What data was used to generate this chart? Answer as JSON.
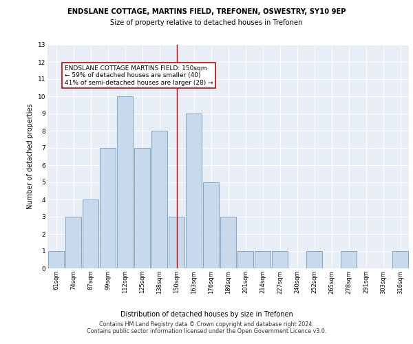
{
  "title1": "ENDSLANE COTTAGE, MARTINS FIELD, TREFONEN, OSWESTRY, SY10 9EP",
  "title2": "Size of property relative to detached houses in Trefonen",
  "xlabel": "Distribution of detached houses by size in Trefonen",
  "ylabel": "Number of detached properties",
  "categories": [
    "61sqm",
    "74sqm",
    "87sqm",
    "99sqm",
    "112sqm",
    "125sqm",
    "138sqm",
    "150sqm",
    "163sqm",
    "176sqm",
    "189sqm",
    "201sqm",
    "214sqm",
    "227sqm",
    "240sqm",
    "252sqm",
    "265sqm",
    "278sqm",
    "291sqm",
    "303sqm",
    "316sqm"
  ],
  "values": [
    1,
    3,
    4,
    7,
    10,
    7,
    8,
    3,
    9,
    5,
    3,
    1,
    1,
    1,
    0,
    1,
    0,
    1,
    0,
    0,
    1
  ],
  "bar_color": "#c9d9ec",
  "bar_edge_color": "#7fa7c9",
  "reference_line_index": 7,
  "reference_line_color": "#cc0000",
  "annotation_text": "ENDSLANE COTTAGE MARTINS FIELD: 150sqm\n← 59% of detached houses are smaller (40)\n41% of semi-detached houses are larger (28) →",
  "annotation_box_color": "#ffffff",
  "annotation_box_edge": "#cc0000",
  "ylim": [
    0,
    13
  ],
  "yticks": [
    0,
    1,
    2,
    3,
    4,
    5,
    6,
    7,
    8,
    9,
    10,
    11,
    12,
    13
  ],
  "bg_color": "#e8eef5",
  "grid_color": "#ffffff",
  "footer1": "Contains HM Land Registry data © Crown copyright and database right 2024.",
  "footer2": "Contains public sector information licensed under the Open Government Licence v3.0."
}
